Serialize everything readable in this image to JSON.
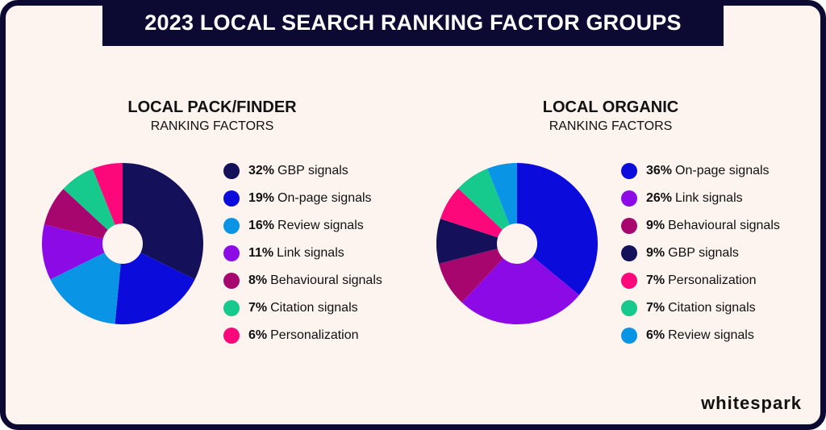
{
  "title": "2023 LOCAL SEARCH RANKING FACTOR GROUPS",
  "logo": "whitespark",
  "chart_data": [
    {
      "type": "pie",
      "title": "LOCAL PACK/FINDER",
      "subtitle": "RANKING FACTORS",
      "donut_hole": true,
      "start": "top, clockwise",
      "legend_placement": "right",
      "slices": [
        {
          "label": "GBP signals",
          "value": 32,
          "color": "#14105a"
        },
        {
          "label": "On-page signals",
          "value": 19,
          "color": "#0b0bdc"
        },
        {
          "label": "Review signals",
          "value": 16,
          "color": "#0a94e6"
        },
        {
          "label": "Link signals",
          "value": 11,
          "color": "#8c0ae6"
        },
        {
          "label": "Behavioural signals",
          "value": 8,
          "color": "#a6066e"
        },
        {
          "label": "Citation signals",
          "value": 7,
          "color": "#16c98d"
        },
        {
          "label": "Personalization",
          "value": 6,
          "color": "#fc087a"
        }
      ]
    },
    {
      "type": "pie",
      "title": "LOCAL ORGANIC",
      "subtitle": "RANKING FACTORS",
      "donut_hole": true,
      "start": "top, clockwise",
      "legend_placement": "right",
      "slices": [
        {
          "label": "On-page signals",
          "value": 36,
          "color": "#0b0bdc"
        },
        {
          "label": "Link signals",
          "value": 26,
          "color": "#8c0ae6"
        },
        {
          "label": "Behavioural signals",
          "value": 9,
          "color": "#a6066e"
        },
        {
          "label": "GBP signals",
          "value": 9,
          "color": "#14105a"
        },
        {
          "label": "Personalization",
          "value": 7,
          "color": "#fc087a"
        },
        {
          "label": "Citation signals",
          "value": 7,
          "color": "#16c98d"
        },
        {
          "label": "Review signals",
          "value": 6,
          "color": "#0a94e6"
        }
      ]
    }
  ]
}
